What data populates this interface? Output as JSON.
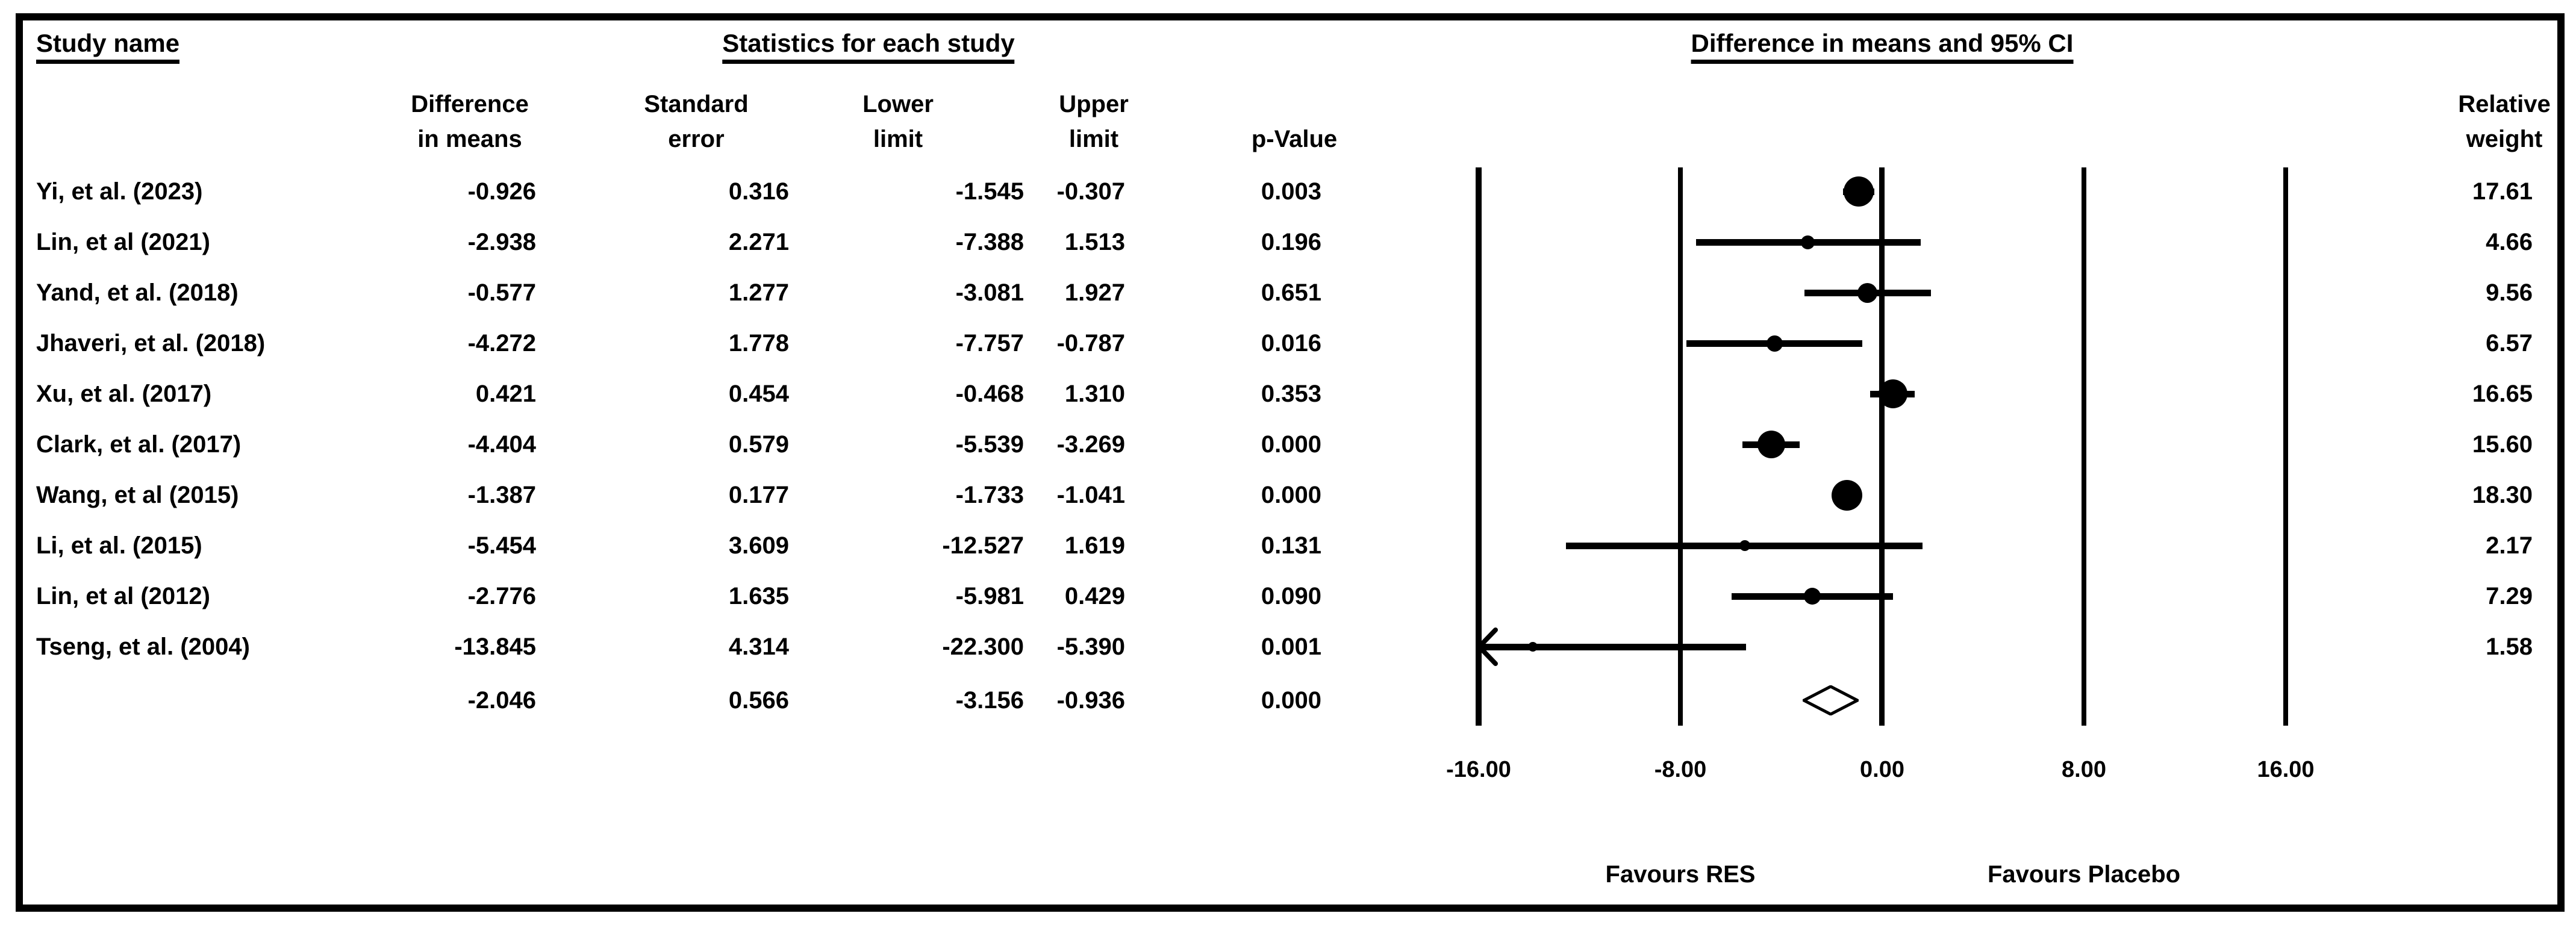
{
  "figure": {
    "group_headers": {
      "study": "Study name",
      "stats": "Statistics for each study",
      "plot": "Difference in means and 95% CI"
    },
    "col_headers": {
      "diff": [
        "Difference",
        "in means"
      ],
      "se": [
        "Standard",
        "error"
      ],
      "lower": [
        "Lower",
        "limit"
      ],
      "upper": [
        "Upper",
        "limit"
      ],
      "pval": "p-Value",
      "weight": [
        "Relative",
        "weight"
      ]
    },
    "axis_labels": [
      "-16.00",
      "-8.00",
      "0.00",
      "8.00",
      "16.00"
    ],
    "favours_left": "Favours RES",
    "favours_right": "Favours Placebo",
    "colors": {
      "ink": "#000000",
      "background": "#ffffff"
    }
  },
  "chart_data": {
    "type": "forest",
    "title": "Difference in means and 95% CI",
    "effect_measure": "Difference in means",
    "xlim": [
      -16,
      16
    ],
    "ticks": [
      -16,
      -8,
      0,
      8,
      16
    ],
    "grid": true,
    "xlabel_left": "Favours RES",
    "xlabel_right": "Favours Placebo",
    "columns": [
      "Study name",
      "Difference in means",
      "Standard error",
      "Lower limit",
      "Upper limit",
      "p-Value",
      "Relative weight"
    ],
    "studies": [
      {
        "name": "Yi, et al. (2023)",
        "diff": "-0.926",
        "se": "0.316",
        "lower": "-1.545",
        "upper": "-0.307",
        "p": "0.003",
        "weight": "17.61"
      },
      {
        "name": "Lin, et al (2021)",
        "diff": "-2.938",
        "se": "2.271",
        "lower": "-7.388",
        "upper": "1.513",
        "p": "0.196",
        "weight": "4.66"
      },
      {
        "name": "Yand, et al. (2018)",
        "diff": "-0.577",
        "se": "1.277",
        "lower": "-3.081",
        "upper": "1.927",
        "p": "0.651",
        "weight": "9.56"
      },
      {
        "name": "Jhaveri, et al. (2018)",
        "diff": "-4.272",
        "se": "1.778",
        "lower": "-7.757",
        "upper": "-0.787",
        "p": "0.016",
        "weight": "6.57"
      },
      {
        "name": "Xu, et al. (2017)",
        "diff": "0.421",
        "se": "0.454",
        "lower": "-0.468",
        "upper": "1.310",
        "p": "0.353",
        "weight": "16.65"
      },
      {
        "name": "Clark, et al. (2017)",
        "diff": "-4.404",
        "se": "0.579",
        "lower": "-5.539",
        "upper": "-3.269",
        "p": "0.000",
        "weight": "15.60"
      },
      {
        "name": "Wang, et al (2015)",
        "diff": "-1.387",
        "se": "0.177",
        "lower": "-1.733",
        "upper": "-1.041",
        "p": "0.000",
        "weight": "18.30"
      },
      {
        "name": "Li, et al. (2015)",
        "diff": "-5.454",
        "se": "3.609",
        "lower": "-12.527",
        "upper": "1.619",
        "p": "0.131",
        "weight": "2.17"
      },
      {
        "name": "Lin, et al (2012)",
        "diff": "-2.776",
        "se": "1.635",
        "lower": "-5.981",
        "upper": "0.429",
        "p": "0.090",
        "weight": "7.29"
      },
      {
        "name": "Tseng, et al. (2004)",
        "diff": "-13.845",
        "se": "4.314",
        "lower": "-22.300",
        "upper": "-5.390",
        "p": "0.001",
        "weight": "1.58"
      }
    ],
    "summary": {
      "name": "",
      "diff": "-2.046",
      "se": "0.566",
      "lower": "-3.156",
      "upper": "-0.936",
      "p": "0.000",
      "weight": "",
      "marker": "open-diamond"
    }
  }
}
